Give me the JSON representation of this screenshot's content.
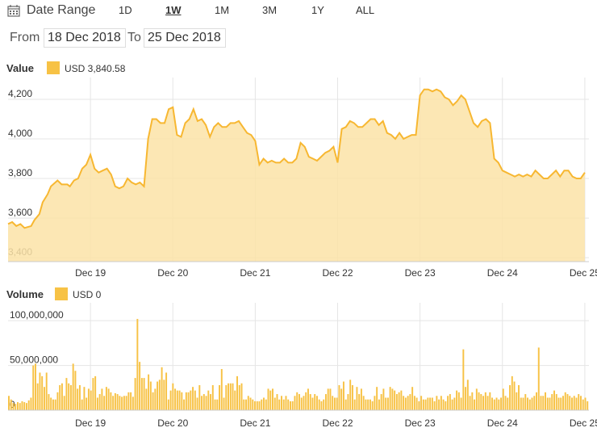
{
  "toolbar": {
    "date_range_label": "Date Range",
    "ranges": [
      "1D",
      "1W",
      "1M",
      "3M",
      "1Y",
      "ALL"
    ],
    "active_range": "1W"
  },
  "datebar": {
    "from_label": "From",
    "from_value": "18 Dec 2018",
    "to_label": "To",
    "to_value": "25 Dec 2018"
  },
  "value_legend": {
    "title": "Value",
    "series_label": "USD 3,840.58"
  },
  "volume_legend": {
    "title": "Volume",
    "series_label": "USD 0"
  },
  "colors": {
    "line": "#f7b731",
    "fill": "#fbe3a7",
    "bar": "#f7c245",
    "grid": "#e5e5e5"
  },
  "chart_data": [
    {
      "type": "area",
      "x_label_positions": [
        "Dec 19",
        "Dec 20",
        "Dec 21",
        "Dec 22",
        "Dec 23",
        "Dec 24",
        "Dec 25"
      ],
      "yticks": [
        3400,
        3600,
        3800,
        4000,
        4200
      ],
      "ytick_labels": [
        "3,400",
        "3,600",
        "3,800",
        "4,000",
        "4,200"
      ],
      "ylim": [
        3380,
        4310
      ],
      "xlim": [
        0,
        7.05
      ],
      "grid": true,
      "series": [
        {
          "x": [
            0,
            0.05,
            0.1,
            0.15,
            0.2,
            0.28,
            0.32,
            0.38,
            0.42,
            0.48,
            0.52,
            0.6,
            0.65,
            0.72,
            0.75,
            0.8,
            0.85,
            0.9,
            0.95,
            1.0,
            1.05,
            1.1,
            1.15,
            1.2,
            1.25,
            1.3,
            1.35,
            1.4,
            1.45,
            1.5,
            1.55,
            1.6,
            1.65,
            1.7,
            1.75,
            1.8,
            1.85,
            1.9,
            1.95,
            2.0,
            2.05,
            2.1,
            2.15,
            2.2,
            2.25,
            2.3,
            2.35,
            2.4,
            2.45,
            2.5,
            2.55,
            2.6,
            2.65,
            2.7,
            2.75,
            2.8,
            2.85,
            2.9,
            2.95,
            3.0,
            3.05,
            3.1,
            3.15,
            3.2,
            3.25,
            3.3,
            3.35,
            3.4,
            3.45,
            3.5,
            3.55,
            3.6,
            3.65,
            3.7,
            3.75,
            3.8,
            3.85,
            3.9,
            3.95,
            4.0,
            4.05,
            4.1,
            4.15,
            4.2,
            4.25,
            4.3,
            4.35,
            4.4,
            4.45,
            4.5,
            4.55,
            4.6,
            4.65,
            4.7,
            4.75,
            4.8,
            4.85,
            4.9,
            4.95,
            5.0,
            5.05,
            5.1,
            5.15,
            5.2,
            5.25,
            5.3,
            5.35,
            5.4,
            5.45,
            5.5,
            5.55,
            5.6,
            5.65,
            5.7,
            5.75,
            5.8,
            5.85,
            5.9,
            5.95,
            6.0,
            6.05,
            6.1,
            6.15,
            6.2,
            6.25,
            6.3,
            6.35,
            6.4,
            6.45,
            6.5,
            6.55,
            6.6,
            6.65,
            6.7,
            6.75,
            6.8,
            6.85,
            6.9,
            6.95,
            7.0
          ],
          "values": [
            3570,
            3580,
            3560,
            3570,
            3550,
            3560,
            3590,
            3620,
            3680,
            3720,
            3760,
            3790,
            3770,
            3770,
            3760,
            3790,
            3800,
            3850,
            3870,
            3920,
            3850,
            3830,
            3840,
            3850,
            3820,
            3760,
            3750,
            3760,
            3800,
            3780,
            3770,
            3780,
            3760,
            4000,
            4100,
            4100,
            4080,
            4080,
            4150,
            4160,
            4020,
            4010,
            4080,
            4100,
            4150,
            4090,
            4100,
            4070,
            4010,
            4060,
            4080,
            4060,
            4060,
            4080,
            4080,
            4090,
            4060,
            4030,
            4020,
            3990,
            3870,
            3900,
            3880,
            3890,
            3880,
            3880,
            3900,
            3880,
            3880,
            3900,
            3980,
            3960,
            3910,
            3900,
            3890,
            3910,
            3930,
            3940,
            3960,
            3880,
            4050,
            4060,
            4090,
            4080,
            4060,
            4060,
            4080,
            4100,
            4100,
            4070,
            4090,
            4030,
            4020,
            4000,
            4030,
            4000,
            4010,
            4020,
            4020,
            4220,
            4250,
            4250,
            4240,
            4250,
            4240,
            4210,
            4200,
            4170,
            4190,
            4220,
            4200,
            4140,
            4080,
            4060,
            4090,
            4100,
            4080,
            3900,
            3880,
            3840,
            3830,
            3820,
            3810,
            3820,
            3810,
            3820,
            3810,
            3840,
            3820,
            3800,
            3800,
            3820,
            3840,
            3810,
            3840,
            3840,
            3810,
            3800,
            3800,
            3830
          ]
        }
      ]
    },
    {
      "type": "bar",
      "x_label_positions": [
        "Dec 19",
        "Dec 20",
        "Dec 21",
        "Dec 22",
        "Dec 23",
        "Dec 24",
        "Dec 25"
      ],
      "yticks": [
        0,
        50000000,
        100000000
      ],
      "ytick_labels": [
        "0",
        "50,000,000",
        "100,000,000"
      ],
      "ylim": [
        0,
        120000000
      ],
      "xlim": [
        0,
        7.05
      ],
      "grid": true,
      "series": [
        {
          "values": [
            16,
            12,
            8,
            7,
            9,
            8,
            10,
            9,
            8,
            11,
            14,
            50,
            52,
            30,
            42,
            38,
            26,
            42,
            18,
            14,
            12,
            12,
            20,
            28,
            30,
            16,
            36,
            30,
            28,
            52,
            44,
            24,
            28,
            12,
            26,
            14,
            24,
            22,
            36,
            38,
            14,
            18,
            24,
            16,
            26,
            24,
            20,
            16,
            19,
            18,
            16,
            15,
            16,
            16,
            20,
            20,
            15,
            36,
            102,
            54,
            36,
            36,
            24,
            40,
            32,
            20,
            24,
            32,
            34,
            48,
            34,
            42,
            12,
            22,
            30,
            24,
            22,
            22,
            20,
            12,
            20,
            20,
            22,
            26,
            22,
            14,
            28,
            16,
            18,
            16,
            22,
            18,
            28,
            12,
            12,
            28,
            46,
            14,
            28,
            30,
            30,
            30,
            22,
            38,
            28,
            30,
            12,
            12,
            16,
            14,
            12,
            10,
            10,
            10,
            12,
            14,
            12,
            24,
            22,
            24,
            14,
            18,
            12,
            16,
            12,
            16,
            12,
            10,
            10,
            16,
            20,
            18,
            14,
            16,
            20,
            24,
            18,
            14,
            18,
            16,
            12,
            10,
            12,
            18,
            24,
            24,
            16,
            14,
            14,
            28,
            24,
            32,
            12,
            18,
            34,
            28,
            12,
            26,
            18,
            24,
            16,
            12,
            12,
            12,
            10,
            16,
            26,
            12,
            18,
            24,
            14,
            14,
            26,
            24,
            22,
            18,
            20,
            22,
            16,
            14,
            16,
            18,
            26,
            16,
            14,
            10,
            16,
            12,
            12,
            14,
            14,
            14,
            10,
            16,
            12,
            16,
            12,
            10,
            16,
            18,
            12,
            14,
            22,
            20,
            14,
            68,
            26,
            34,
            16,
            20,
            12,
            24,
            20,
            18,
            16,
            20,
            16,
            20,
            14,
            12,
            14,
            12,
            14,
            24,
            16,
            14,
            28,
            38,
            32,
            20,
            28,
            14,
            14,
            18,
            14,
            12,
            14,
            16,
            20,
            70,
            16,
            16,
            20,
            14,
            14,
            18,
            22,
            18,
            14,
            14,
            16,
            20,
            18,
            16,
            14,
            16,
            14,
            18,
            16,
            12,
            14,
            10
          ]
        }
      ]
    }
  ]
}
